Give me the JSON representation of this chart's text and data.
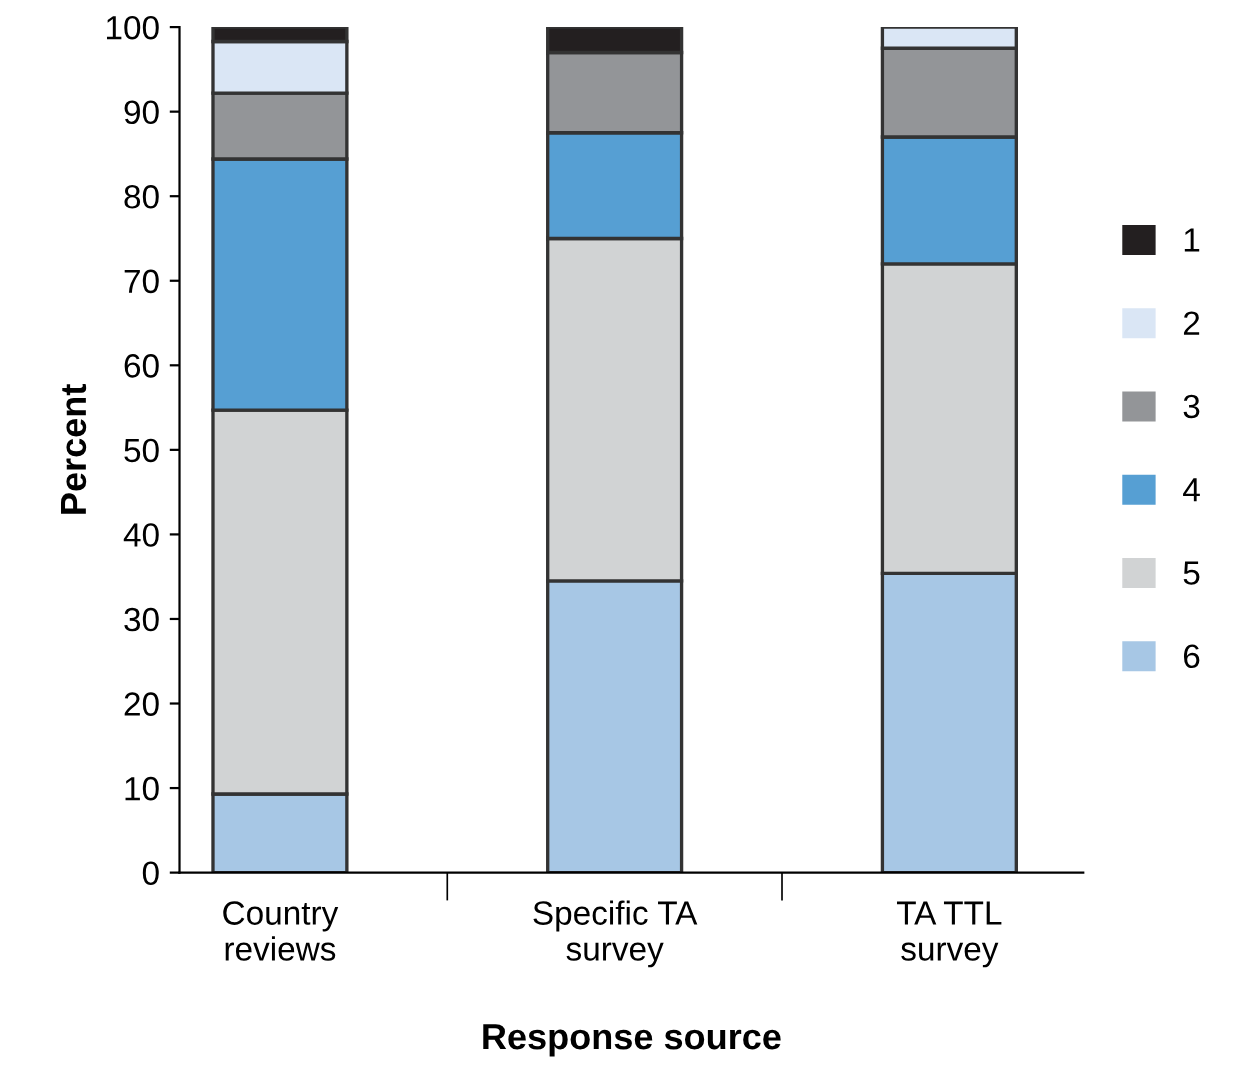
{
  "chart_data": {
    "type": "bar",
    "stacked": true,
    "xlabel": "Response source",
    "ylabel": "Percent",
    "categories": [
      "Country\nreviews",
      "Specific TA\nsurvey",
      "TA TTL\nsurvey"
    ],
    "series": [
      {
        "name": "6",
        "color": "#a7c7e5",
        "values": [
          9.3,
          34.5,
          35.4
        ]
      },
      {
        "name": "5",
        "color": "#d1d3d4",
        "values": [
          45.4,
          40.5,
          36.6
        ]
      },
      {
        "name": "4",
        "color": "#569fd3",
        "values": [
          29.7,
          12.5,
          15.0
        ]
      },
      {
        "name": "3",
        "color": "#939598",
        "values": [
          7.8,
          9.5,
          10.5
        ]
      },
      {
        "name": "2",
        "color": "#dae6f5",
        "values": [
          6.1,
          null,
          2.5
        ]
      },
      {
        "name": "1",
        "color": "#231f20",
        "values": [
          1.7,
          3.0,
          null
        ]
      }
    ],
    "ylim": [
      0,
      100
    ],
    "yticks": [
      0,
      10,
      20,
      30,
      40,
      50,
      60,
      70,
      80,
      90,
      100
    ],
    "grid": false,
    "legend": "right"
  }
}
